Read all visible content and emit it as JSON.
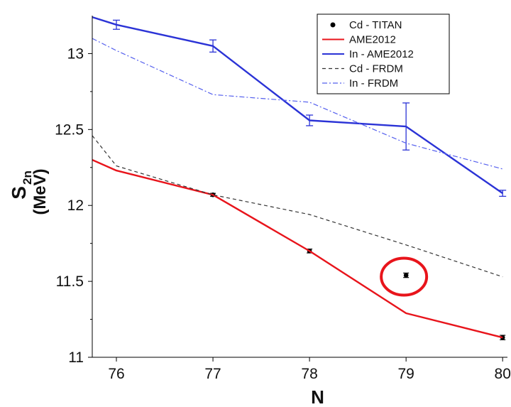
{
  "chart_data": {
    "type": "line",
    "xlabel": "N",
    "ylabel": {
      "main": "S",
      "sub": "2n",
      "unit": "(MeV)"
    },
    "xlim": [
      75.75,
      80.05
    ],
    "ylim": [
      11.0,
      13.25
    ],
    "xticks": [
      76,
      77,
      78,
      79,
      80
    ],
    "yticks": [
      11,
      11.5,
      12,
      12.5,
      13
    ],
    "ytick_labels": [
      "11",
      "11.5",
      "12",
      "12.5",
      "13"
    ],
    "xtick_labels": [
      "76",
      "77",
      "78",
      "79",
      "80"
    ],
    "legend_position": "top-right",
    "series": [
      {
        "name": "Cd - TITAN",
        "style": "points",
        "color": "#000000",
        "x": [
          77,
          78,
          79,
          80
        ],
        "y": [
          12.07,
          11.7,
          11.54,
          11.13
        ],
        "err": [
          0.005,
          0.008,
          0.01,
          0.01
        ]
      },
      {
        "name": "AME2012",
        "style": "solid",
        "color": "#e8141b",
        "x": [
          75.75,
          76,
          77,
          78,
          79,
          80
        ],
        "y": [
          12.3,
          12.23,
          12.07,
          11.7,
          11.29,
          11.13
        ]
      },
      {
        "name": "In - AME2012",
        "style": "solid",
        "color": "#2b33d6",
        "x": [
          75.75,
          76,
          77,
          78,
          79,
          80
        ],
        "y": [
          13.24,
          13.19,
          13.05,
          12.56,
          12.52,
          12.08
        ],
        "err": [
          null,
          0.03,
          0.04,
          0.035,
          0.155,
          0.02
        ]
      },
      {
        "name": "Cd - FRDM",
        "style": "dashed",
        "color": "#333333",
        "x": [
          75.75,
          76,
          77,
          78,
          79,
          80
        ],
        "y": [
          12.46,
          12.26,
          12.07,
          11.94,
          11.74,
          11.53
        ]
      },
      {
        "name": "In - FRDM",
        "style": "dashdot",
        "color": "#5560ee",
        "x": [
          75.75,
          76,
          77,
          78,
          79,
          80
        ],
        "y": [
          13.1,
          13.02,
          12.73,
          12.68,
          12.41,
          12.24
        ]
      }
    ],
    "annotation": {
      "type": "circle",
      "color": "#e8141b",
      "x": 79,
      "y": 11.54
    }
  }
}
